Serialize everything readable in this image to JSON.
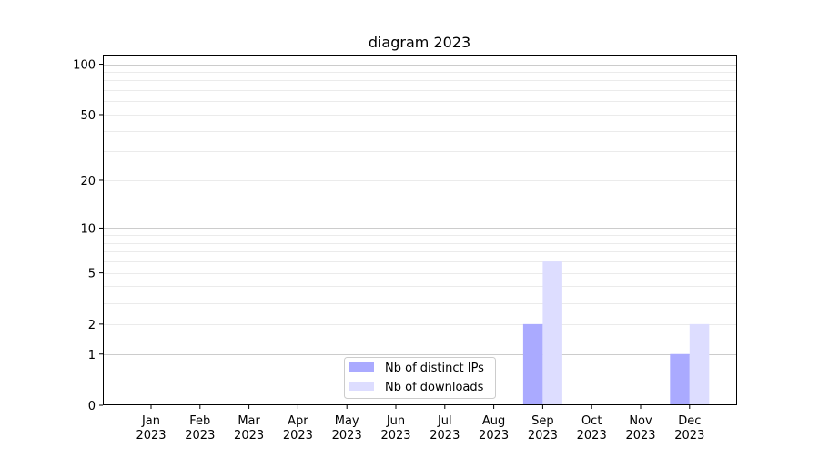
{
  "chart_data": {
    "type": "bar",
    "title": "diagram 2023",
    "xlabel": "",
    "ylabel": "",
    "yscale": "log(1+y)",
    "ylim": [
      0,
      114
    ],
    "yticks": [
      0,
      1,
      2,
      5,
      10,
      20,
      50,
      100
    ],
    "grid": true,
    "legend_position": "lower-center",
    "categories": [
      "Jan\n2023",
      "Feb\n2023",
      "Mar\n2023",
      "Apr\n2023",
      "May\n2023",
      "Jun\n2023",
      "Jul\n2023",
      "Aug\n2023",
      "Sep\n2023",
      "Oct\n2023",
      "Nov\n2023",
      "Dec\n2023"
    ],
    "series": [
      {
        "name": "Nb of distinct IPs",
        "color": "#aaaaff",
        "values": [
          0,
          0,
          0,
          0,
          0,
          0,
          0,
          0,
          2,
          0,
          0,
          1
        ]
      },
      {
        "name": "Nb of downloads",
        "color": "#ddddff",
        "values": [
          0,
          0,
          0,
          0,
          0,
          0,
          0,
          0,
          6,
          0,
          0,
          2
        ]
      }
    ]
  }
}
